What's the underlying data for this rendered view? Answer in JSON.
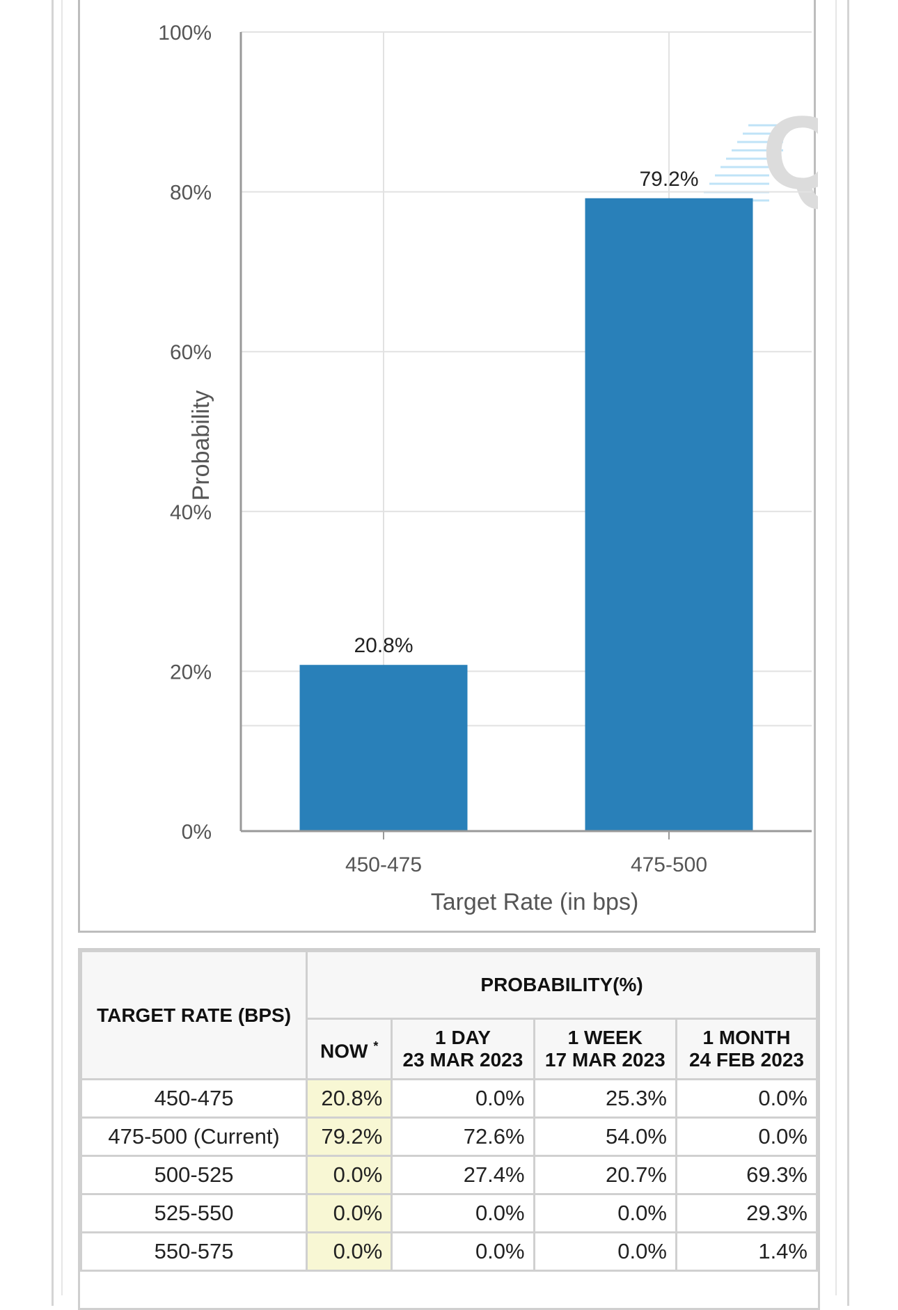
{
  "chart_data": {
    "type": "bar",
    "categories": [
      "450-475",
      "475-500"
    ],
    "values": [
      20.8,
      79.2
    ],
    "value_labels": [
      "20.8%",
      "79.2%"
    ],
    "xlabel": "Target Rate (in bps)",
    "ylabel": "Probability",
    "ylim": [
      0,
      100
    ],
    "yticks": [
      0,
      20,
      40,
      60,
      80,
      100
    ],
    "ytick_labels": [
      "0%",
      "20%",
      "40%",
      "60%",
      "80%",
      "100%"
    ],
    "grid": true,
    "bar_color": "#2980b9"
  },
  "table": {
    "rate_header": "TARGET RATE (BPS)",
    "prob_header": "PROBABILITY(%)",
    "columns": [
      {
        "line1": "NOW",
        "sup": "*"
      },
      {
        "line1": "1 DAY",
        "line2": "23 MAR 2023"
      },
      {
        "line1": "1 WEEK",
        "line2": "17 MAR 2023"
      },
      {
        "line1": "1 MONTH",
        "line2": "24 FEB 2023"
      }
    ],
    "rows": [
      {
        "rate": "450-475",
        "now": "20.8%",
        "day": "0.0%",
        "week": "25.3%",
        "month": "0.0%"
      },
      {
        "rate": "475-500 (Current)",
        "now": "79.2%",
        "day": "72.6%",
        "week": "54.0%",
        "month": "0.0%"
      },
      {
        "rate": "500-525",
        "now": "0.0%",
        "day": "27.4%",
        "week": "20.7%",
        "month": "69.3%"
      },
      {
        "rate": "525-550",
        "now": "0.0%",
        "day": "0.0%",
        "week": "0.0%",
        "month": "29.3%"
      },
      {
        "rate": "550-575",
        "now": "0.0%",
        "day": "0.0%",
        "week": "0.0%",
        "month": "1.4%"
      }
    ],
    "now_highlight": "#f8f7d4"
  }
}
